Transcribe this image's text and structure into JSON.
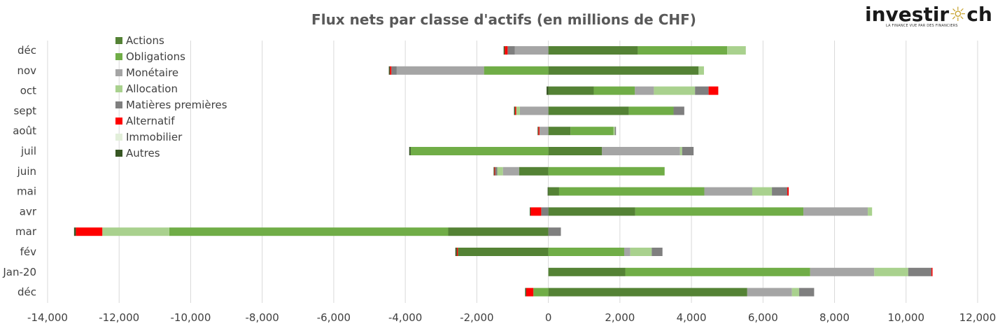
{
  "logo": {
    "brand_left": "investir",
    "brand_right": "ch",
    "tagline": "LA FINANCE VUE PAR DES FINANCIERS"
  },
  "chart_data": {
    "type": "bar",
    "orientation": "horizontal",
    "stacked": true,
    "title": "Flux nets par classe d'actifs (en millions de CHF)",
    "xlabel": "",
    "ylabel": "",
    "xlim": [
      -14000,
      12000
    ],
    "xticks": [
      -14000,
      -12000,
      -10000,
      -8000,
      -6000,
      -4000,
      -2000,
      0,
      2000,
      4000,
      6000,
      8000,
      10000,
      12000
    ],
    "xtick_labels": [
      "-14,000",
      "-12,000",
      "-10,000",
      "-8,000",
      "-6,000",
      "-4,000",
      "-2,000",
      "0",
      "2,000",
      "4,000",
      "6,000",
      "8,000",
      "10,000",
      "12,000"
    ],
    "grid": "vertical",
    "legend_position": "top-left",
    "categories": [
      "déc",
      "nov",
      "oct",
      "sept",
      "août",
      "juil",
      "juin",
      "mai",
      "avr",
      "mar",
      "fév",
      "Jan-20",
      "déc"
    ],
    "series": [
      {
        "name": "Actions",
        "color": "#548235",
        "values": [
          2500,
          4200,
          1270,
          2250,
          620,
          1500,
          -820,
          300,
          2430,
          -2800,
          -2530,
          2150,
          5560
        ]
      },
      {
        "name": "Obligations",
        "color": "#70ad47",
        "values": [
          2500,
          -1800,
          1150,
          1250,
          1200,
          -3850,
          3250,
          4060,
          4700,
          -7800,
          2120,
          5170,
          -420
        ]
      },
      {
        "name": "Monétaire",
        "color": "#a5a5a5",
        "values": [
          -940,
          -2440,
          530,
          -800,
          -250,
          2180,
          -450,
          1340,
          1800,
          0,
          170,
          1790,
          1250
        ]
      },
      {
        "name": "Allocation",
        "color": "#a9d18e",
        "values": [
          520,
          150,
          1150,
          -100,
          40,
          60,
          -160,
          550,
          120,
          -1870,
          600,
          950,
          200
        ]
      },
      {
        "name": "Matières premières",
        "color": "#7f7f7f",
        "values": [
          -200,
          -150,
          380,
          300,
          30,
          320,
          -60,
          430,
          -200,
          350,
          300,
          650,
          420
        ]
      },
      {
        "name": "Alternatif",
        "color": "#ff0000",
        "values": [
          -80,
          -40,
          270,
          -30,
          -30,
          0,
          -20,
          40,
          -300,
          -740,
          -30,
          30,
          -200
        ]
      },
      {
        "name": "Immobilier",
        "color": "#e2efda",
        "values": [
          0,
          0,
          0,
          0,
          0,
          0,
          0,
          0,
          0,
          0,
          0,
          0,
          0
        ]
      },
      {
        "name": "Autres",
        "color": "#375623",
        "values": [
          -30,
          -30,
          -50,
          -30,
          -20,
          -40,
          -20,
          -20,
          -20,
          -50,
          -40,
          0,
          -30
        ]
      }
    ]
  }
}
